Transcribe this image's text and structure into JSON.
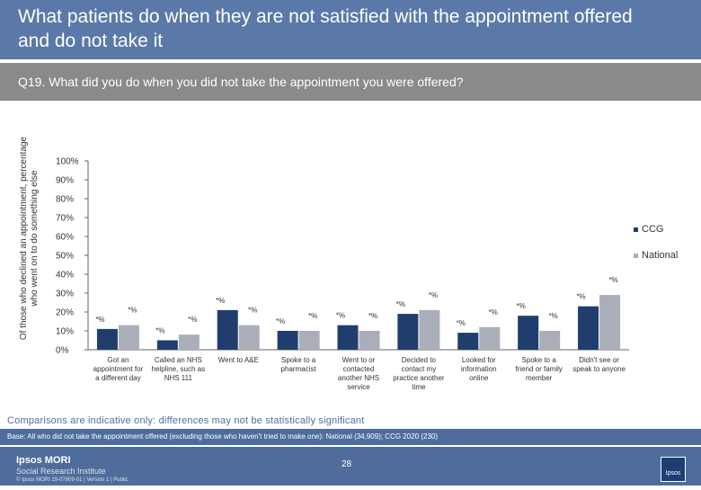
{
  "header": {
    "title": "What patients do when they are not satisfied with the appointment offered and do not take it",
    "question": "Q19. What did you do when you did not take the appointment you were offered?"
  },
  "chart_data": {
    "type": "bar",
    "ylabel": "Of those who declined an appointment, percentage who went on to do something else",
    "ylim": [
      0,
      100
    ],
    "yticks": [
      "0%",
      "10%",
      "20%",
      "30%",
      "40%",
      "50%",
      "60%",
      "70%",
      "80%",
      "90%",
      "100%"
    ],
    "grid": false,
    "legend_position": "right",
    "categories": [
      [
        "Got an",
        "appointment for",
        "a different day"
      ],
      [
        "Called an NHS",
        "helpline, such as",
        "NHS 111"
      ],
      [
        "Went to A&E"
      ],
      [
        "Spoke to a",
        "pharmacist"
      ],
      [
        "Went to or",
        "contacted",
        "another NHS",
        "service"
      ],
      [
        "Decided to",
        "contact my",
        "practice another",
        "time"
      ],
      [
        "Looked for",
        "information",
        "online"
      ],
      [
        "Spoke to a",
        "friend or family",
        "member"
      ],
      [
        "Didn't see or",
        "speak to anyone"
      ]
    ],
    "series": [
      {
        "name": "CCG",
        "values": [
          11,
          5,
          21,
          10,
          13,
          19,
          9,
          18,
          23
        ],
        "labels": [
          "*%",
          "*%",
          "*%",
          "*%",
          "*%",
          "*%",
          "*%",
          "*%",
          "*%"
        ]
      },
      {
        "name": "National",
        "values": [
          13,
          8,
          13,
          10,
          10,
          21,
          12,
          10,
          29
        ],
        "labels": [
          "*%",
          "*%",
          "*%",
          "*%",
          "*%",
          "*%",
          "*%",
          "*%",
          "*%"
        ]
      }
    ]
  },
  "colors": {
    "ccg": "#1f3e6e",
    "national": "#a9aeb9",
    "title_band": "#5b79a8",
    "question_band": "#8a8a8c",
    "footer": "#4f6d9c"
  },
  "notes": {
    "caveat": "Comparisons are indicative only: differences may not be statistically significant",
    "base": "Base: All who did not take the appointment offered (excluding those who haven't tried to make one): National (34,909); CCG 2020 (230)"
  },
  "footer": {
    "logo_main": "Ipsos MORI",
    "logo_sub": "Social Research Institute",
    "page": "28",
    "copyright": "© Ipsos MORI      19-07809-01 | Version 1 | Public",
    "corner_logo_text": "Ipsos",
    "corner_logo_icon": "ipsos-logo-icon"
  }
}
